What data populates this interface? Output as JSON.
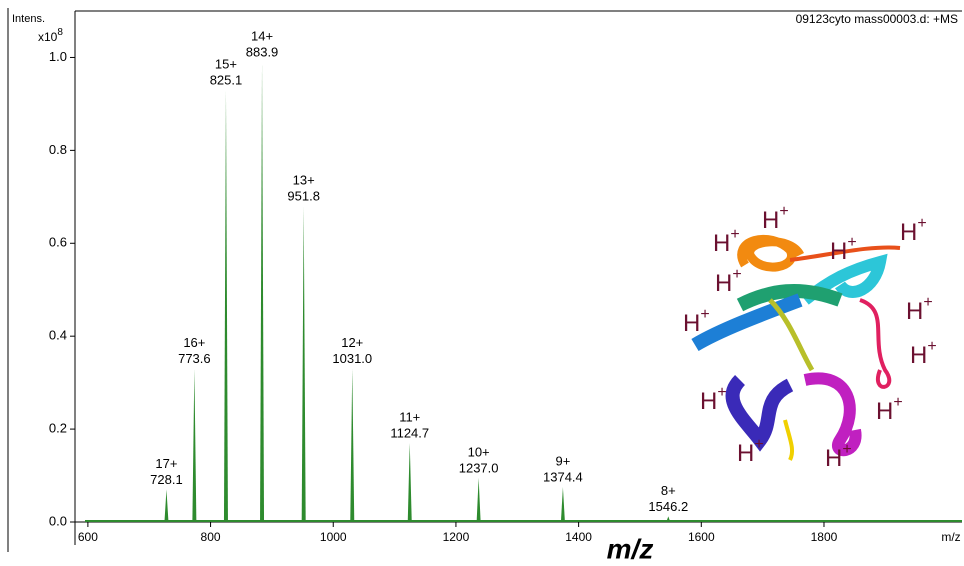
{
  "chart_data": {
    "type": "spectrum",
    "title": "09123cyto mass00003.d: +MS",
    "y_label": "Intens.",
    "y_scale": {
      "base": "x10",
      "exponent": "8"
    },
    "x_unit_label": "m/z",
    "x_title": "m/z",
    "x": [
      728.1,
      773.6,
      825.1,
      883.9,
      951.8,
      1031.0,
      1124.7,
      1237.0,
      1374.4,
      1546.2
    ],
    "x_labels": [
      "728.1",
      "773.6",
      "825.1",
      "883.9",
      "951.8",
      "1031.0",
      "1124.7",
      "1237.0",
      "1374.4",
      "1546.2"
    ],
    "charges": [
      "17+",
      "16+",
      "15+",
      "14+",
      "13+",
      "12+",
      "11+",
      "10+",
      "9+",
      "8+"
    ],
    "values": [
      0.07,
      0.33,
      0.93,
      0.99,
      0.68,
      0.33,
      0.17,
      0.095,
      0.075,
      0.012
    ],
    "color": "#2e8b2e",
    "xlim": [
      579,
      2025
    ],
    "ylim": [
      0,
      1.1
    ],
    "xticks": [
      600,
      800,
      1000,
      1200,
      1400,
      1600,
      1800
    ],
    "yticks": [
      {
        "value": 0,
        "label": "0.0"
      },
      0.2,
      0.4,
      0.6,
      0.8,
      {
        "value": 1,
        "label": "1.0"
      }
    ],
    "proton": {
      "symbol": "H",
      "charge": "+"
    }
  }
}
